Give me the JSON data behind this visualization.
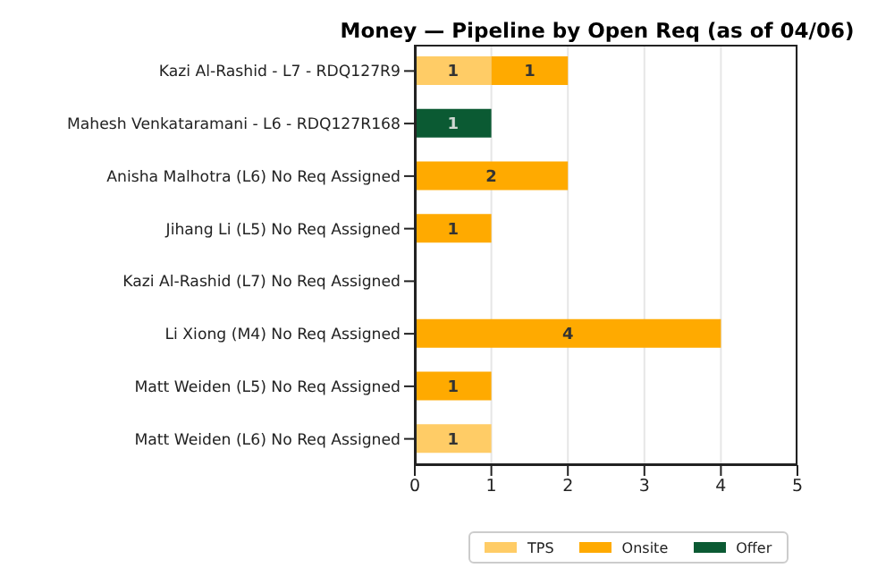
{
  "chart_data": {
    "type": "bar",
    "orientation": "horizontal",
    "stacked": true,
    "title": "Money — Pipeline by Open Req (as of 04/06)",
    "categories": [
      "Kazi Al-Rashid - L7 - RDQ127R9",
      "Mahesh Venkataramani - L6 - RDQ127R168",
      "Anisha Malhotra (L6) No Req Assigned",
      "Jihang Li (L5) No Req Assigned",
      "Kazi Al-Rashid (L7) No Req Assigned",
      "Li Xiong (M4) No Req Assigned",
      "Matt Weiden (L5) No Req Assigned",
      "Matt Weiden (L6) No Req Assigned"
    ],
    "series": [
      {
        "name": "TPS",
        "color": "#ffcc66",
        "values": [
          1,
          null,
          null,
          null,
          null,
          null,
          null,
          1
        ]
      },
      {
        "name": "Onsite",
        "color": "#ffaa00",
        "values": [
          1,
          null,
          2,
          1,
          null,
          4,
          1,
          null
        ]
      },
      {
        "name": "Offer",
        "color": "#0b5a33",
        "values": [
          null,
          1,
          null,
          null,
          null,
          null,
          null,
          null
        ]
      }
    ],
    "xlim": [
      0,
      5
    ],
    "xticks": [
      0,
      1,
      2,
      3,
      4,
      5
    ],
    "grid": "x",
    "legend": "bottom",
    "data_labels": true
  }
}
